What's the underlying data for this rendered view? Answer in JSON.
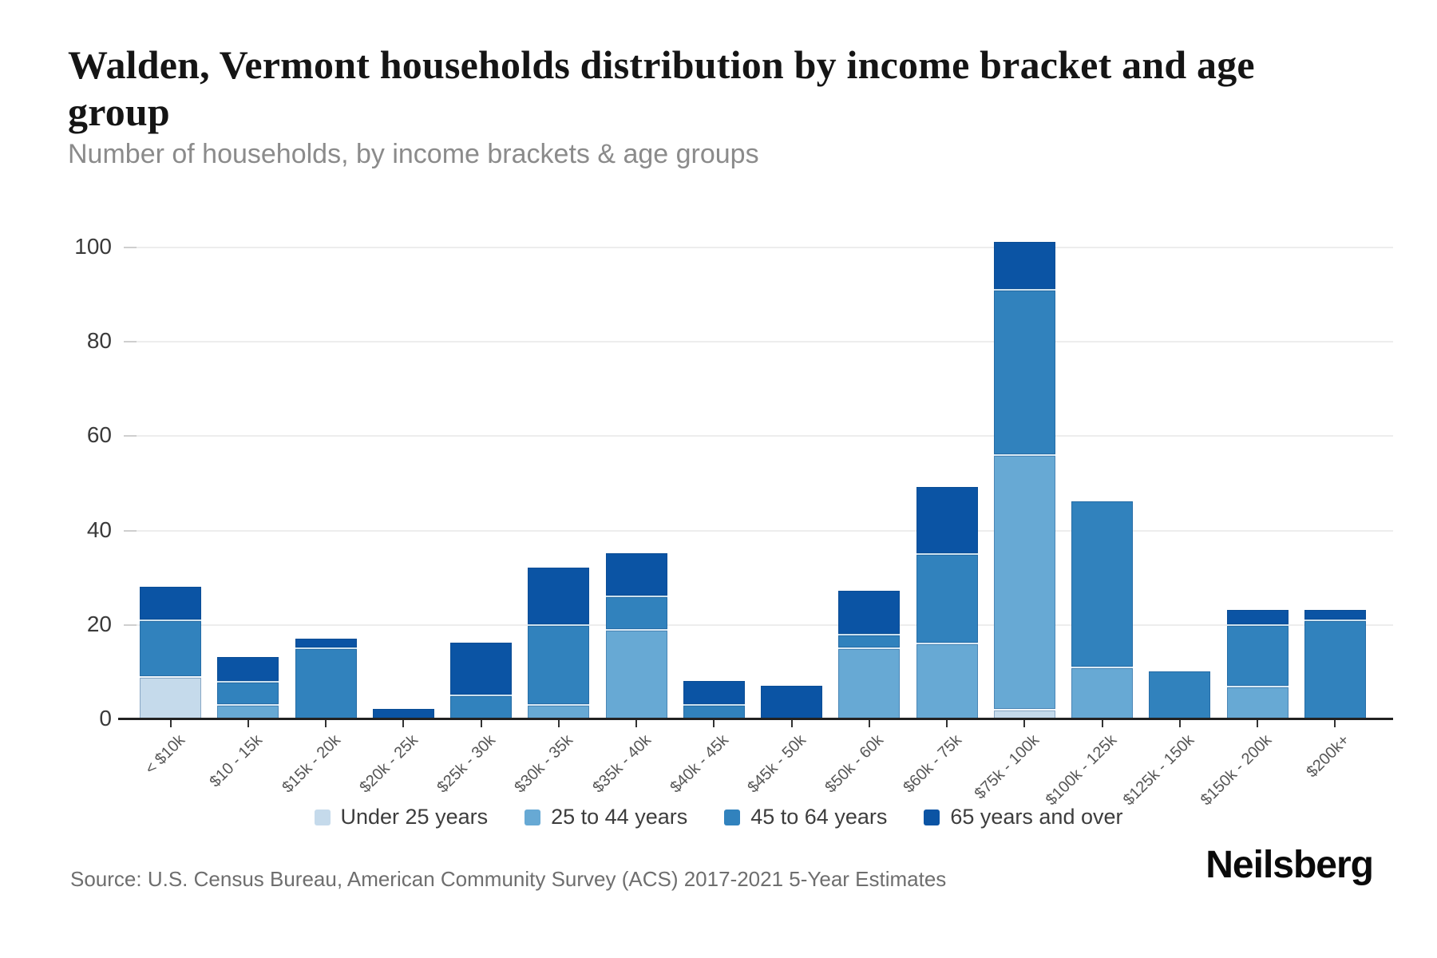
{
  "header": {
    "title_line1": "Walden, Vermont households distribution by income bracket and age",
    "title_line2": "group",
    "subtitle": "Number of households, by income brackets & age groups"
  },
  "footer": {
    "source": "Source: U.S. Census Bureau, American Community Survey (ACS) 2017-2021 5-Year Estimates",
    "brand": "Neilsberg"
  },
  "chart_data": {
    "type": "bar",
    "stacked": true,
    "title": "Walden, Vermont households distribution by income bracket and age group",
    "subtitle": "Number of households, by income brackets & age groups",
    "xlabel": "",
    "ylabel": "",
    "ylim": [
      0,
      100
    ],
    "yticks": [
      0,
      20,
      40,
      60,
      80,
      100
    ],
    "grid": true,
    "legend_position": "bottom",
    "categories": [
      "< $10k",
      "$10 - 15k",
      "$15k - 20k",
      "$20k - 25k",
      "$25k - 30k",
      "$30k - 35k",
      "$35k - 40k",
      "$40k - 45k",
      "$45k - 50k",
      "$50k - 60k",
      "$60k - 75k",
      "$75k - 100k",
      "$100k - 125k",
      "$125k - 150k",
      "$150k - 200k",
      "$200k+"
    ],
    "series": [
      {
        "name": "Under 25 years",
        "color": "#c5daeb",
        "values": [
          9,
          0,
          0,
          0,
          0,
          0,
          0,
          0,
          0,
          0,
          0,
          2,
          0,
          0,
          0,
          0
        ]
      },
      {
        "name": "25 to 44 years",
        "color": "#67a9d4",
        "values": [
          0,
          3,
          0,
          0,
          0,
          3,
          19,
          0,
          0,
          15,
          16,
          54,
          11,
          0,
          7,
          0
        ]
      },
      {
        "name": "45 to 64 years",
        "color": "#3182bd",
        "values": [
          12,
          5,
          15,
          0,
          5,
          17,
          7,
          3,
          0,
          3,
          19,
          35,
          35,
          10,
          13,
          21
        ]
      },
      {
        "name": "65 years and over",
        "color": "#0b54a4",
        "values": [
          7,
          5,
          2,
          2,
          11,
          12,
          9,
          5,
          7,
          9,
          14,
          10,
          0,
          0,
          3,
          2
        ]
      }
    ],
    "totals": [
      28,
      13,
      17,
      2,
      16,
      32,
      35,
      8,
      7,
      27,
      49,
      101,
      46,
      10,
      23,
      23
    ]
  }
}
